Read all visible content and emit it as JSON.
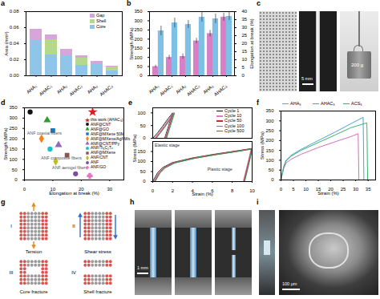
{
  "chart_data": [
    {
      "panel": "a",
      "type": "bar",
      "stacked": true,
      "categories": [
        "AHA₁",
        "AHAC₁",
        "AHA₂",
        "AHAC₂",
        "AHA₃",
        "AHAC₃"
      ],
      "y_label": "Area (mm²)",
      "ylim": [
        0,
        0.08
      ],
      "yticks": [
        {
          "value": 0,
          "label": "0.00"
        },
        {
          "value": 0.02,
          "label": "0.02"
        },
        {
          "value": 0.04,
          "label": "0.04"
        },
        {
          "value": 0.06,
          "label": "0.06"
        },
        {
          "value": 0.08,
          "label": "0.08"
        }
      ],
      "legend": "upper right",
      "series": [
        {
          "name": "Core",
          "color": "#8ec5e8",
          "values": [
            0.044,
            0.026,
            0.025,
            0.013,
            0.014,
            0.006
          ]
        },
        {
          "name": "Shell",
          "color": "#b5d98c",
          "values": [
            0,
            0.019,
            0,
            0.009,
            0,
            0.005
          ]
        },
        {
          "name": "Gap",
          "color": "#d8a5da",
          "values": [
            0.014,
            0.006,
            0.008,
            0.003,
            0.004,
            0.001
          ]
        }
      ]
    },
    {
      "panel": "b",
      "type": "bar",
      "categories": [
        "AHA₁",
        "AHAC₁",
        "AHA₂",
        "AHAC₂",
        "AHA₃",
        "AHAC₃"
      ],
      "ylim": [
        0,
        350
      ],
      "yticks": [
        0,
        50,
        100,
        150,
        200,
        250,
        300,
        350
      ],
      "y2lim": [
        0,
        40
      ],
      "y2ticks": [
        0,
        5,
        10,
        15,
        20,
        25,
        30,
        35,
        40
      ],
      "series": [
        {
          "name": "Strength (MPa)",
          "color": "#d97fc6",
          "values": [
            50,
            100,
            105,
            190,
            230,
            320
          ],
          "errors": [
            8,
            12,
            14,
            15,
            18,
            22
          ]
        },
        {
          "name": "Elongation at break (%)",
          "color": "#7fc1e6",
          "axis": "y2",
          "values": [
            28,
            33,
            32,
            36.5,
            35.5,
            37
          ],
          "errors": [
            3,
            3,
            2.5,
            3,
            3,
            2.5
          ]
        }
      ]
    },
    {
      "panel": "d",
      "type": "scatter",
      "x_label": "Elongation at break (%)",
      "y_label": "Strength (MPa)",
      "xlim": [
        0,
        35
      ],
      "xticks": [
        0,
        10,
        20,
        30
      ],
      "ylim": [
        0,
        350
      ],
      "yticks": [
        0,
        50,
        100,
        150,
        200,
        250,
        300,
        350
      ],
      "legend": "right",
      "series": [
        {
          "name": "this work (AHAC₃)",
          "color": "#e41a1c",
          "marker": "star",
          "x": [
            24
          ],
          "values": [
            330
          ]
        },
        {
          "name": "ANF@CNT",
          "color": "#111111",
          "marker": "circle",
          "x": [
            2
          ],
          "values": [
            330
          ]
        },
        {
          "name": "ANF@GO",
          "color": "#2ca02c",
          "marker": "triangle",
          "x": [
            8
          ],
          "values": [
            290
          ]
        },
        {
          "name": "ANF@MXene 50M",
          "color": "#1f77b4",
          "marker": "square",
          "x": [
            10
          ],
          "values": [
            240
          ]
        },
        {
          "name": "ANF@MXene/AgNWs",
          "color": "#ff7f0e",
          "marker": "diamond",
          "x": [
            6
          ],
          "values": [
            200
          ]
        },
        {
          "name": "ANF@CNT/PPy",
          "color": "#9467bd",
          "marker": "triangle",
          "x": [
            12
          ],
          "values": [
            170
          ]
        },
        {
          "name": "ANF/Ti₃C₂Tₓ",
          "color": "#17becf",
          "marker": "circle",
          "x": [
            9
          ],
          "values": [
            150
          ]
        },
        {
          "name": "ANF@MXene",
          "color": "#8c564b",
          "marker": "square",
          "x": [
            15
          ],
          "values": [
            120
          ]
        },
        {
          "name": "ANF/CNT",
          "color": "#bcbd22",
          "marker": "diamond",
          "x": [
            11
          ],
          "values": [
            90
          ]
        },
        {
          "name": "ANF",
          "color": "#7b4fa0",
          "marker": "circle",
          "x": [
            18
          ],
          "values": [
            30
          ]
        },
        {
          "name": "ANF/GO",
          "color": "#e377c2",
          "marker": "cross",
          "x": [
            23
          ],
          "values": [
            20
          ]
        }
      ],
      "annotations": [
        {
          "text": "ANF coaxial fibers",
          "x": 7,
          "y": 225
        },
        {
          "text": "ANF composite fibers",
          "x": 13,
          "y": 105
        },
        {
          "text": "ANF aerogel fibers",
          "x": 16,
          "y": 58
        }
      ]
    },
    {
      "panel": "e",
      "type": "line",
      "tick_labels": "y",
      "xlim": [
        0,
        10
      ],
      "xticks": [
        0,
        2,
        4,
        6,
        8,
        10
      ],
      "ylim": [
        0,
        120
      ],
      "yticks": [
        0,
        50,
        100
      ],
      "legend": "upper right",
      "series": [
        {
          "name": "Cycle 1",
          "color": "#111111",
          "x": [
            0,
            0.5,
            1,
            1.5,
            2,
            1.6,
            1.2
          ],
          "values": [
            0,
            22,
            48,
            75,
            100,
            50,
            0
          ]
        },
        {
          "name": "Cycle 10",
          "color": "#e377c2",
          "x": [
            0.15,
            0.6,
            1.1,
            1.6,
            2.05,
            1.65,
            1.25
          ],
          "values": [
            0,
            22,
            48,
            75,
            100,
            50,
            0
          ]
        },
        {
          "name": "Cycle 50",
          "color": "#d62728",
          "x": [
            0.25,
            0.7,
            1.2,
            1.7,
            2.1,
            1.7,
            1.3
          ],
          "values": [
            0,
            22,
            48,
            75,
            100,
            50,
            0
          ]
        },
        {
          "name": "Cycle 100",
          "color": "#9467bd",
          "x": [
            0.3,
            0.75,
            1.25,
            1.75,
            2.15,
            1.75,
            1.35
          ],
          "values": [
            0,
            22,
            48,
            75,
            100,
            50,
            0
          ]
        },
        {
          "name": "Cycle 500",
          "color": "#2ca02c",
          "x": [
            0.35,
            0.8,
            1.3,
            1.8,
            2.2,
            1.8,
            1.4
          ],
          "values": [
            0,
            22,
            48,
            75,
            100,
            50,
            0
          ]
        }
      ]
    },
    {
      "type": "line",
      "x_label": "Strain (%)",
      "y_label": "Stress (MPa)",
      "xlim": [
        0,
        10
      ],
      "xticks": [
        0,
        2,
        4,
        6,
        8,
        10
      ],
      "ylim": [
        0,
        200
      ],
      "yticks": [
        0,
        50,
        100,
        150
      ],
      "series": [
        {
          "name": "Cycle 1",
          "color": "#111111",
          "x": [
            0,
            0.5,
            1,
            2,
            4,
            6,
            8,
            10,
            9.6,
            9.2
          ],
          "values": [
            0,
            45,
            70,
            95,
            118,
            135,
            150,
            165,
            80,
            0
          ]
        },
        {
          "name": "Cycle 10",
          "color": "#e377c2",
          "x": [
            0.1,
            0.6,
            1.1,
            2.1,
            4.1,
            6.1,
            8.1,
            9.9,
            9.5,
            9.1
          ],
          "values": [
            0,
            44,
            69,
            94,
            117,
            134,
            149,
            163,
            80,
            0
          ]
        },
        {
          "name": "Cycle 50",
          "color": "#d62728",
          "x": [
            0.15,
            0.65,
            1.15,
            2.15,
            4.15,
            6.15,
            8.15,
            9.95,
            9.55,
            9.15
          ],
          "values": [
            0,
            44,
            69,
            94,
            117,
            134,
            149,
            164,
            80,
            0
          ]
        },
        {
          "name": "Cycle 100",
          "color": "#9467bd",
          "x": [
            0.2,
            0.7,
            1.2,
            2.2,
            4.2,
            6.2,
            8.2,
            10,
            9.6,
            9.2
          ],
          "values": [
            0,
            43,
            68,
            93,
            116,
            133,
            148,
            163,
            80,
            0
          ]
        },
        {
          "name": "Cycle 500",
          "color": "#2ca02c",
          "x": [
            0.25,
            0.75,
            1.25,
            2.25,
            4.25,
            6.25,
            8.25,
            10,
            9.65,
            9.25
          ],
          "values": [
            0,
            43,
            68,
            93,
            116,
            133,
            148,
            162,
            80,
            0
          ]
        }
      ],
      "annotations": [
        {
          "text": "Elastic stage",
          "x": 0.2,
          "y": 180
        },
        {
          "text": "Plastic stage",
          "x": 5.5,
          "y": 60
        }
      ]
    },
    {
      "panel": "f",
      "type": "line",
      "x_label": "Strain (%)",
      "y_label": "Stress (MPa)",
      "xlim": [
        0,
        38
      ],
      "xticks": [
        0,
        5,
        10,
        15,
        20,
        25,
        30,
        35
      ],
      "ylim": [
        0,
        350
      ],
      "yticks": [
        0,
        50,
        100,
        150,
        200,
        250,
        300,
        350
      ],
      "legend": "top",
      "series": [
        {
          "name": "AHA₃",
          "color": "#d36fb6",
          "x": [
            0,
            1,
            2,
            4,
            8,
            15,
            22,
            28,
            31,
            31.3
          ],
          "values": [
            0,
            55,
            85,
            105,
            130,
            165,
            195,
            220,
            235,
            0
          ]
        },
        {
          "name": "AHAC₃",
          "color": "#4aa3d8",
          "x": [
            0,
            1,
            2,
            4,
            8,
            15,
            22,
            28,
            33,
            33.3
          ],
          "values": [
            0,
            65,
            100,
            125,
            155,
            200,
            245,
            285,
            318,
            0
          ]
        },
        {
          "name": "ACS₃",
          "color": "#3cb371",
          "x": [
            0,
            1,
            2,
            4,
            8,
            15,
            22,
            28,
            34.5,
            34.8
          ],
          "values": [
            0,
            60,
            95,
            120,
            150,
            190,
            230,
            265,
            290,
            0
          ]
        }
      ]
    }
  ],
  "images": [
    {
      "panel": "c",
      "texts": [
        "5 mm",
        "200 g"
      ]
    },
    {
      "panel": "g",
      "stages": [
        "I",
        "II",
        "III",
        "IV"
      ],
      "annotations": [
        "Tension",
        "Shear stress",
        "Core fracture",
        "Shell fracture"
      ]
    },
    {
      "panel": "h",
      "texts": [
        "1 mm"
      ]
    },
    {
      "panel": "i",
      "texts": [
        "100 μm"
      ]
    }
  ]
}
